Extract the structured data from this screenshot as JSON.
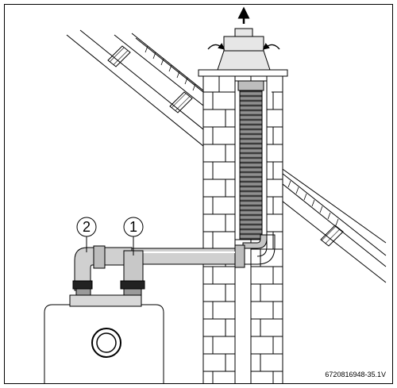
{
  "diagram": {
    "callouts": [
      {
        "id": "2",
        "label": "2"
      },
      {
        "id": "1",
        "label": "1"
      }
    ],
    "reference_code": "6720816948-35.1V",
    "colors": {
      "line": "#000000",
      "pipe_fill": "#c9c9c9",
      "liner_fill": "#6e6e6e",
      "background": "#ffffff"
    }
  }
}
